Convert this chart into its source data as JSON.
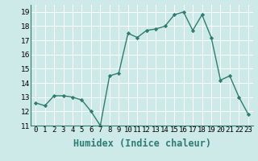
{
  "x": [
    0,
    1,
    2,
    3,
    4,
    5,
    6,
    7,
    8,
    9,
    10,
    11,
    12,
    13,
    14,
    15,
    16,
    17,
    18,
    19,
    20,
    21,
    22,
    23
  ],
  "y": [
    12.6,
    12.4,
    13.1,
    13.1,
    13.0,
    12.8,
    12.0,
    11.0,
    14.5,
    14.7,
    17.5,
    17.2,
    17.7,
    17.8,
    18.0,
    18.8,
    19.0,
    17.7,
    18.8,
    17.2,
    14.2,
    14.5,
    13.0,
    11.8
  ],
  "xlabel": "Humidex (Indice chaleur)",
  "line_color": "#2e7d6e",
  "bg_color": "#ceeae8",
  "grid_color": "#ffffff",
  "marker": "D",
  "marker_size": 2.2,
  "ylim": [
    11,
    19.5
  ],
  "xlim": [
    -0.5,
    23.5
  ],
  "yticks": [
    11,
    12,
    13,
    14,
    15,
    16,
    17,
    18,
    19
  ],
  "xticks": [
    0,
    1,
    2,
    3,
    4,
    5,
    6,
    7,
    8,
    9,
    10,
    11,
    12,
    13,
    14,
    15,
    16,
    17,
    18,
    19,
    20,
    21,
    22,
    23
  ],
  "xtick_labels": [
    "0",
    "1",
    "2",
    "3",
    "4",
    "5",
    "6",
    "7",
    "8",
    "9",
    "10",
    "11",
    "12",
    "13",
    "14",
    "15",
    "16",
    "17",
    "18",
    "19",
    "20",
    "21",
    "22",
    "23"
  ],
  "linewidth": 1.0,
  "tick_fontsize": 6.5,
  "xlabel_fontsize": 8.5,
  "grid_linewidth": 0.7
}
